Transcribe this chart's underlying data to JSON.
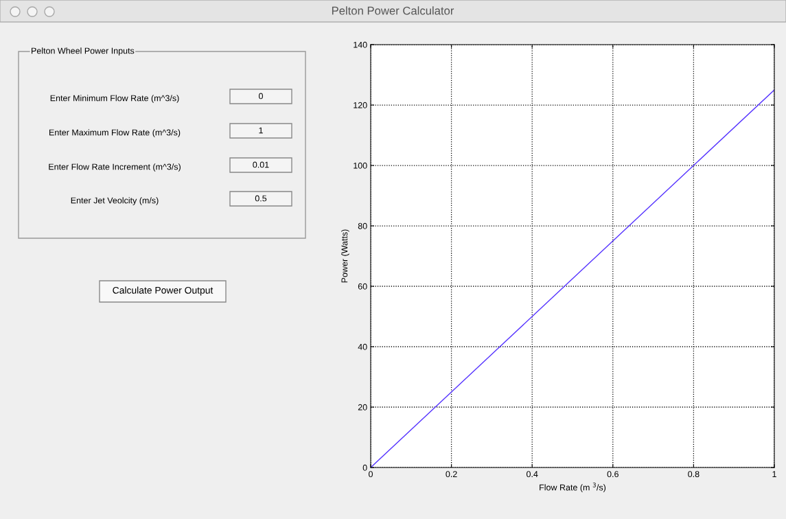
{
  "chart_data": [
    {
      "type": "other",
      "title": "Pelton Power Calculator",
      "subtitle": "Pelton Wheel Power Inputs",
      "annotations": [
        "Enter Minimum Flow Rate (m^3/s)",
        "0",
        "Enter Maximum Flow Rate (m^3/s)",
        "1",
        "Enter Flow Rate Increment (m^3/s)",
        "0.01",
        "Enter Jet Veolcity (m/s)",
        "0.5",
        "Calculate Power Output"
      ]
    },
    {
      "type": "line",
      "xlabel": "Flow Rate (m $^{3}$/s)",
      "ylabel": "Power (Watts)",
      "x": [
        0,
        0.2,
        0.4,
        0.6,
        0.8,
        1
      ],
      "series": [
        {
          "color": "#5533ff",
          "values": [
            0,
            25,
            50,
            75,
            100,
            125
          ]
        }
      ],
      "xlim": [
        0,
        1
      ],
      "xticks": [
        0,
        0.2,
        0.4,
        0.6,
        0.8,
        1
      ],
      "ylim": [
        0,
        140
      ],
      "yticks": [
        0,
        20,
        40,
        60,
        80,
        100,
        120,
        140
      ],
      "grid": true,
      "line_style": "solid"
    }
  ]
}
